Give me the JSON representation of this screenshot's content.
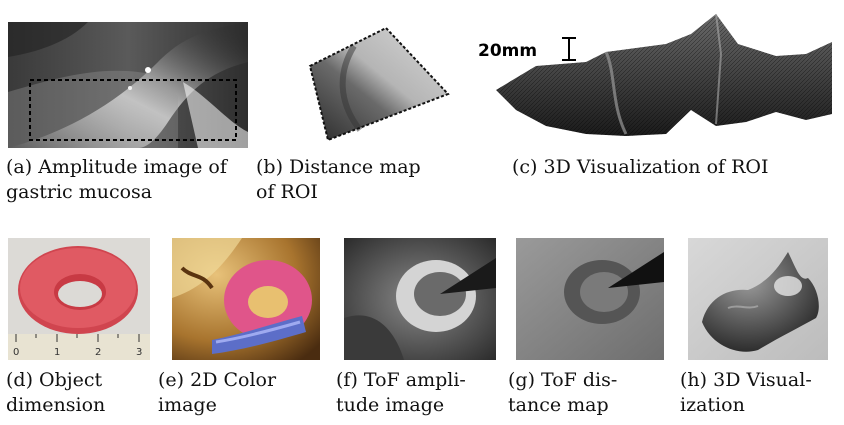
{
  "figure": {
    "top_row": [
      {
        "id": "a",
        "caption_line1": "(a) Amplitude image of",
        "caption_line2": "gastric mucosa"
      },
      {
        "id": "b",
        "caption_line1": "(b) Distance map",
        "caption_line2": "of ROI"
      },
      {
        "id": "c",
        "caption_line1": "(c) 3D Visualization of ROI",
        "caption_line2": "",
        "scale_label": "20mm"
      }
    ],
    "bottom_row": [
      {
        "id": "d",
        "caption_line1": "(d) Object",
        "caption_line2": "dimension",
        "ruler_labels": [
          "0",
          "1",
          "2",
          "3"
        ]
      },
      {
        "id": "e",
        "caption_line1": "(e) 2D Color",
        "caption_line2": "image"
      },
      {
        "id": "f",
        "caption_line1": "(f) ToF ampli-",
        "caption_line2": "tude image"
      },
      {
        "id": "g",
        "caption_line1": "(g) ToF dis-",
        "caption_line2": "tance map"
      },
      {
        "id": "h",
        "caption_line1": "(h) 3D Visual-",
        "caption_line2": "ization"
      }
    ]
  }
}
